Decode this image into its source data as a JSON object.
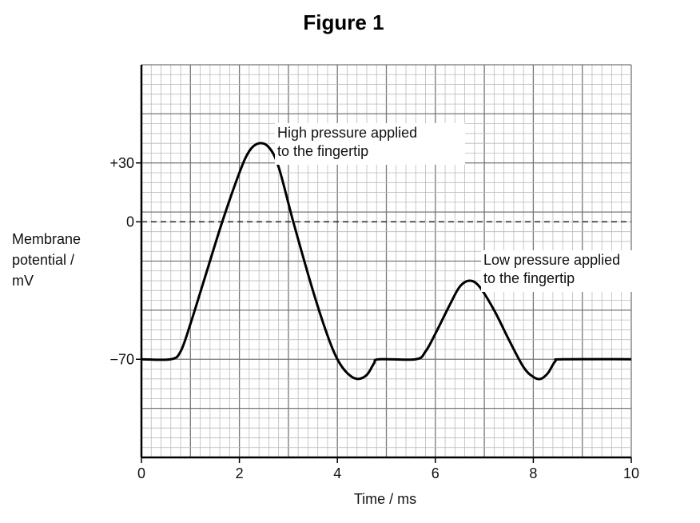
{
  "chart_data": {
    "type": "line",
    "title": "Figure 1",
    "xlabel": "Time / ms",
    "ylabel": [
      "Membrane",
      "potential /",
      "mV"
    ],
    "xlim": [
      0,
      10
    ],
    "ylim": [
      -120,
      80
    ],
    "x_ticks": [
      0,
      2,
      4,
      6,
      8,
      10
    ],
    "y_ticks": [
      {
        "value": 30,
        "label": "+30"
      },
      {
        "value": 0,
        "label": "0"
      },
      {
        "value": -70,
        "label": "−70"
      }
    ],
    "grid": true,
    "reference_line": {
      "y": 0,
      "style": "dashed"
    },
    "series": [
      {
        "x": [
          0,
          0.6,
          0.8,
          1.0,
          1.3,
          1.65,
          2.0,
          2.2,
          2.4,
          2.6,
          2.8,
          3.1,
          3.5,
          3.8,
          4.0,
          4.2,
          4.4,
          4.6,
          4.75,
          4.85,
          5.6,
          5.8,
          6.0,
          6.3,
          6.5,
          6.7,
          6.9,
          7.2,
          7.5,
          7.8,
          8.0,
          8.15,
          8.3,
          8.45,
          8.6,
          10
        ],
        "y": [
          -70,
          -70,
          -66,
          -52,
          -28,
          0,
          25,
          36,
          40,
          38,
          28,
          0,
          -35,
          -58,
          -70,
          -77,
          -80,
          -78,
          -72,
          -70,
          -70,
          -66,
          -57,
          -42,
          -33,
          -30,
          -33,
          -45,
          -60,
          -74,
          -79,
          -80,
          -77,
          -71,
          -70,
          -70
        ]
      }
    ],
    "annotations": [
      {
        "text": [
          "High pressure applied",
          "to the fingertip"
        ],
        "x": 2.9,
        "y": 40
      },
      {
        "text": [
          "Low pressure applied",
          "to the fingertip"
        ],
        "x": 7.0,
        "y": -30
      }
    ]
  }
}
